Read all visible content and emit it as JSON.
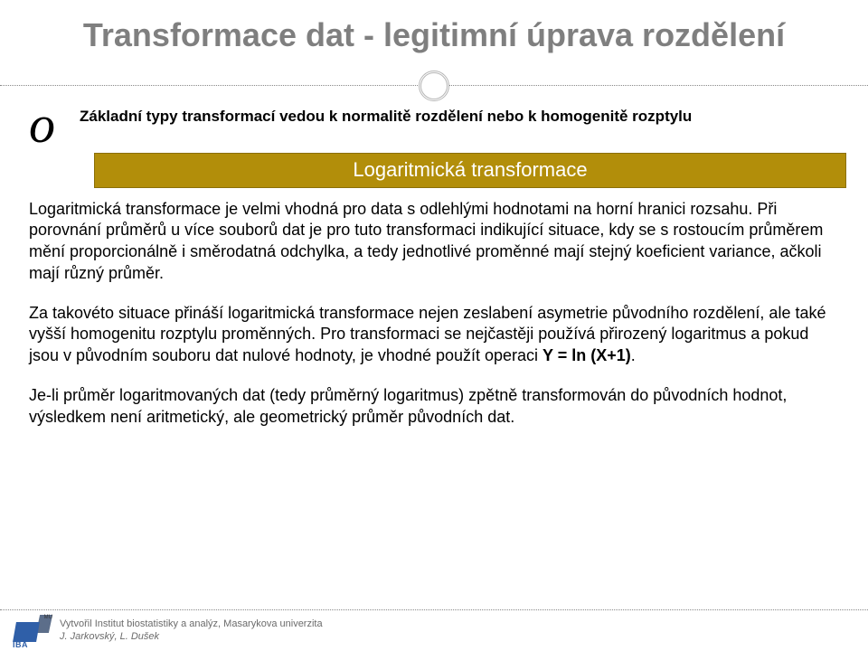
{
  "title": "Transformace dat - legitimní úprava rozdělení",
  "bullet": {
    "glyph": "o",
    "text": "Základní typy transformací vedou k normalitě rozdělení nebo k homogenitě rozptylu"
  },
  "band": {
    "label": "Logaritmická transformace",
    "bg_color": "#b28e0a",
    "text_color": "#ffffff"
  },
  "paragraphs": {
    "p1": "Logaritmická transformace je velmi vhodná pro data s odlehlými hodnotami na horní hranici rozsahu. Při porovnání průměrů u více souborů dat je pro tuto transformaci indikující situace, kdy se s rostoucím průměrem mění proporcionálně i směrodatná odchylka, a tedy jednotlivé proměnné mají stejný koeficient variance, ačkoli mají různý průměr.",
    "p2_pre": "Za takovéto situace přináší logaritmická transformace nejen zeslabení asymetrie původního rozdělení, ale také vyšší homogenitu rozptylu proměnných. Pro transformaci se nejčastěji používá přirozený logaritmus a pokud jsou v původním souboru dat nulové hodnoty, je vhodné použít operaci ",
    "p2_formula": "Y = ln (X+1)",
    "p2_post": ".",
    "p3": "Je-li průměr logaritmovaných dat (tedy průměrný logaritmus) zpětně transformován do původních hodnot, výsledkem není aritmetický, ale geometrický průměr původních dat."
  },
  "footer": {
    "credit_line1": "Vytvořil Institut biostatistiky a analýz, Masarykova univerzita",
    "credit_line2": "J. Jarkovský, L. Dušek",
    "logo_text": "IBA",
    "logo_mu": "MU"
  },
  "colors": {
    "title_color": "#7f7f7f",
    "text_color": "#000000",
    "divider_color": "#888888",
    "logo_primary": "#2f5fa8",
    "logo_secondary": "#5c6e8a",
    "credit_color": "#6b6b6b",
    "background": "#ffffff"
  },
  "typography": {
    "title_fontsize": 36,
    "bullet_fontsize": 17,
    "band_fontsize": 22,
    "body_fontsize": 18,
    "credit_fontsize": 11
  }
}
